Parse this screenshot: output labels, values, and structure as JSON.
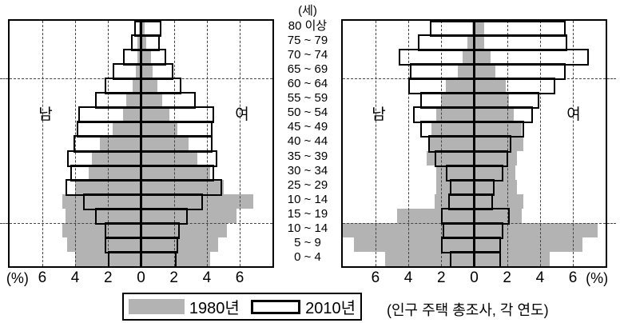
{
  "page": {
    "unit_label": "(세)",
    "source_note": "(인구 주택 총조사, 각 연도)"
  },
  "labels": {
    "male": "남",
    "female": "여",
    "percent": "(%)"
  },
  "legend": {
    "items": [
      {
        "label": "1980년",
        "swatch": "gray-fill"
      },
      {
        "label": "2010년",
        "swatch": "white-outline"
      }
    ]
  },
  "colors": {
    "gray_1980": "#b3b3b3",
    "outline_2010": "#000000",
    "gridline": "#444444",
    "background": "#ffffff"
  },
  "axis": {
    "tick_labels": [
      "6",
      "4",
      "2",
      "0",
      "2",
      "4",
      "6"
    ],
    "percent_label": "(%)"
  },
  "age_axis": {
    "unit": "(세)",
    "groups_top_to_bottom": [
      "80 이상",
      "75 ~ 79",
      "70 ~ 74",
      "65 ~ 69",
      "60 ~ 64",
      "55 ~ 59",
      "50 ~ 54",
      "45 ~ 49",
      "40 ~ 44",
      "35 ~ 39",
      "30 ~ 34",
      "25 ~ 29",
      "10 ~ 14",
      "15 ~ 19",
      "10 ~ 14",
      "5 ~ 9",
      "0 ~ 4"
    ]
  },
  "chart_data": [
    {
      "type": "bar",
      "subtype": "population_pyramid",
      "position": "left",
      "male_label": "남",
      "female_label": "여",
      "x_axis_unit": "(%)",
      "x_tick_labels": [
        "6",
        "4",
        "2",
        "0",
        "2",
        "4",
        "6"
      ],
      "axis_range_each_side": [
        0,
        8
      ],
      "tick_step_percent": 2,
      "grid": "dashed-vertical-at-2-4-6",
      "horizontal_reference_lines_after_row": [
        4,
        14
      ],
      "age_groups_top_to_bottom": [
        "80 이상",
        "75 ~ 79",
        "70 ~ 74",
        "65 ~ 69",
        "60 ~ 64",
        "55 ~ 59",
        "50 ~ 54",
        "45 ~ 49",
        "40 ~ 44",
        "35 ~ 39",
        "30 ~ 34",
        "25 ~ 29",
        "10 ~ 14",
        "15 ~ 19",
        "10 ~ 14",
        "5 ~ 9",
        "0 ~ 4"
      ],
      "series": [
        {
          "name": "1980년",
          "render": "gray-silhouette",
          "male_percent": [
            0.1,
            0.2,
            0.2,
            0.3,
            0.5,
            0.9,
            1.1,
            1.7,
            2.5,
            3.0,
            3.2,
            4.0,
            4.8,
            4.6,
            4.8,
            4.5,
            4.0
          ],
          "female_percent": [
            0.2,
            0.3,
            0.6,
            0.7,
            1.0,
            1.3,
            1.7,
            2.2,
            2.9,
            3.4,
            4.2,
            5.0,
            6.8,
            5.8,
            5.2,
            4.7,
            4.2
          ]
        },
        {
          "name": "2010년",
          "render": "black-outline",
          "male_percent": [
            0.4,
            0.6,
            1.1,
            1.7,
            2.2,
            2.8,
            3.8,
            3.9,
            4.1,
            4.5,
            4.3,
            4.6,
            3.5,
            2.8,
            2.2,
            2.2,
            2.0
          ],
          "female_percent": [
            1.2,
            1.1,
            1.5,
            1.9,
            2.4,
            3.3,
            4.4,
            4.3,
            4.3,
            4.6,
            4.4,
            4.9,
            3.7,
            2.8,
            2.3,
            2.2,
            2.1
          ]
        }
      ]
    },
    {
      "type": "bar",
      "subtype": "population_pyramid",
      "position": "right",
      "male_label": "남",
      "female_label": "여",
      "x_axis_unit": "(%)",
      "x_tick_labels": [
        "6",
        "4",
        "2",
        "0",
        "2",
        "4",
        "6"
      ],
      "axis_range_each_side": [
        0,
        8
      ],
      "tick_step_percent": 2,
      "grid": "dashed-vertical-at-2-4-6",
      "horizontal_reference_lines_after_row": [
        4,
        14
      ],
      "age_groups_top_to_bottom": [
        "80 이상",
        "75 ~ 79",
        "70 ~ 74",
        "65 ~ 69",
        "60 ~ 64",
        "55 ~ 59",
        "50 ~ 54",
        "45 ~ 49",
        "40 ~ 44",
        "35 ~ 39",
        "30 ~ 34",
        "25 ~ 29",
        "10 ~ 14",
        "15 ~ 19",
        "10 ~ 14",
        "5 ~ 9",
        "0 ~ 4"
      ],
      "series": [
        {
          "name": "1980년",
          "render": "gray-silhouette",
          "male_percent": [
            0.1,
            0.4,
            0.7,
            1.0,
            1.7,
            2.0,
            2.3,
            2.6,
            2.8,
            2.9,
            2.3,
            2.3,
            2.4,
            4.7,
            8.0,
            7.3,
            5.4
          ],
          "female_percent": [
            0.6,
            0.6,
            1.0,
            1.3,
            1.9,
            2.1,
            2.4,
            2.9,
            3.0,
            2.6,
            2.5,
            2.6,
            3.0,
            2.9,
            7.5,
            6.6,
            4.6
          ]
        },
        {
          "name": "2010년",
          "render": "black-outline",
          "male_percent": [
            2.7,
            3.4,
            4.6,
            3.9,
            4.0,
            3.3,
            3.7,
            3.3,
            2.8,
            2.4,
            1.7,
            1.5,
            1.6,
            2.0,
            1.9,
            2.0,
            1.5
          ],
          "female_percent": [
            5.5,
            5.6,
            6.9,
            5.5,
            4.9,
            3.9,
            3.5,
            3.0,
            2.2,
            2.0,
            1.7,
            1.2,
            1.1,
            2.1,
            1.7,
            1.6,
            1.6
          ]
        }
      ]
    }
  ]
}
